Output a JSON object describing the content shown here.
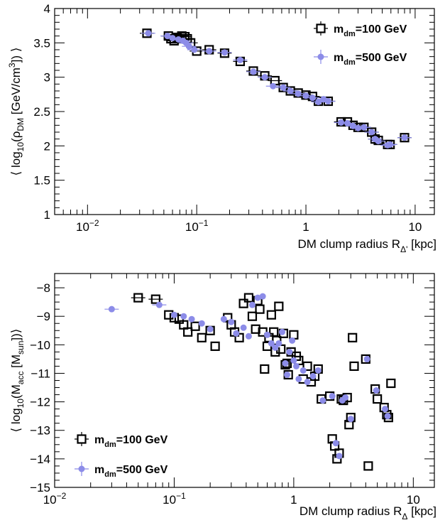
{
  "chart_data": [
    {
      "type": "scatter",
      "xscale": "log",
      "xlim": [
        0.005,
        15
      ],
      "ylim": [
        1,
        4
      ],
      "xlabel": "DM clump radius R",
      "xlabel_sub": "Δ'",
      "xlabel_unit": "[kpc]",
      "ylabel_parts": [
        "⟨ log",
        "10",
        "(ρ",
        "DM",
        " [GeV/cm",
        "3",
        "]) ⟩"
      ],
      "xtick_labels": [
        {
          "value": 0.01,
          "base": "10",
          "exp": "−2"
        },
        {
          "value": 0.1,
          "base": "10",
          "exp": "−1"
        },
        {
          "value": 1,
          "base": "1",
          "exp": ""
        },
        {
          "value": 10,
          "base": "10",
          "exp": ""
        }
      ],
      "ytick_labels": [
        {
          "value": 1,
          "label": "1"
        },
        {
          "value": 1.5,
          "label": "1.5"
        },
        {
          "value": 2,
          "label": "2"
        },
        {
          "value": 2.5,
          "label": "2.5"
        },
        {
          "value": 3,
          "label": "3"
        },
        {
          "value": 3.5,
          "label": "3.5"
        },
        {
          "value": 4,
          "label": "4"
        }
      ],
      "legend": {
        "placement": "top-right",
        "entries": [
          {
            "label_main": "m",
            "label_sub": "dm",
            "label_rest": "=100 GeV",
            "marker": "open-square"
          },
          {
            "label_main": "m",
            "label_sub": "dm",
            "label_rest": "=500 GeV",
            "marker": "filled-circle"
          }
        ]
      },
      "series": [
        {
          "name": "m_dm=100 GeV",
          "marker": "open-square",
          "color": "#000000",
          "points": [
            [
              0.035,
              3.64
            ],
            [
              0.055,
              3.6
            ],
            [
              0.058,
              3.56
            ],
            [
              0.062,
              3.53
            ],
            [
              0.066,
              3.58
            ],
            [
              0.07,
              3.56
            ],
            [
              0.073,
              3.6
            ],
            [
              0.078,
              3.59
            ],
            [
              0.082,
              3.56
            ],
            [
              0.088,
              3.5
            ],
            [
              0.1,
              3.38
            ],
            [
              0.13,
              3.4
            ],
            [
              0.18,
              3.35
            ],
            [
              0.25,
              3.23
            ],
            [
              0.33,
              3.09
            ],
            [
              0.42,
              3.02
            ],
            [
              0.52,
              2.95
            ],
            [
              0.62,
              2.85
            ],
            [
              0.72,
              2.8
            ],
            [
              0.85,
              2.77
            ],
            [
              1.0,
              2.74
            ],
            [
              1.15,
              2.72
            ],
            [
              1.3,
              2.65
            ],
            [
              1.6,
              2.65
            ],
            [
              2.1,
              2.35
            ],
            [
              2.4,
              2.35
            ],
            [
              2.7,
              2.3
            ],
            [
              3.0,
              2.27
            ],
            [
              3.4,
              2.27
            ],
            [
              4.0,
              2.2
            ],
            [
              4.3,
              2.1
            ],
            [
              4.6,
              2.08
            ],
            [
              5.6,
              2.02
            ],
            [
              5.9,
              2.02
            ],
            [
              8.0,
              2.12
            ]
          ]
        },
        {
          "name": "m_dm=500 GeV",
          "marker": "filled-circle",
          "color": "#8c8ce8",
          "points": [
            [
              0.036,
              3.64
            ],
            [
              0.054,
              3.6
            ],
            [
              0.06,
              3.57
            ],
            [
              0.068,
              3.55
            ],
            [
              0.075,
              3.53
            ],
            [
              0.08,
              3.5
            ],
            [
              0.085,
              3.45
            ],
            [
              0.095,
              3.4
            ],
            [
              0.13,
              3.38
            ],
            [
              0.18,
              3.36
            ],
            [
              0.25,
              3.25
            ],
            [
              0.33,
              3.08
            ],
            [
              0.42,
              3.0
            ],
            [
              0.5,
              2.87
            ],
            [
              0.62,
              2.85
            ],
            [
              0.72,
              2.8
            ],
            [
              0.85,
              2.76
            ],
            [
              1.0,
              2.73
            ],
            [
              1.15,
              2.7
            ],
            [
              1.3,
              2.64
            ],
            [
              1.45,
              2.68
            ],
            [
              1.6,
              2.65
            ],
            [
              2.1,
              2.34
            ],
            [
              2.4,
              2.33
            ],
            [
              2.7,
              2.29
            ],
            [
              3.0,
              2.26
            ],
            [
              3.4,
              2.27
            ],
            [
              4.0,
              2.2
            ],
            [
              4.3,
              2.1
            ],
            [
              4.6,
              2.07
            ],
            [
              5.6,
              2.01
            ],
            [
              5.9,
              2.02
            ],
            [
              8.0,
              2.12
            ]
          ]
        }
      ]
    },
    {
      "type": "scatter",
      "xscale": "log",
      "xlim": [
        0.01,
        15
      ],
      "ylim": [
        -15,
        -7.5
      ],
      "xlabel": "DM clump radius R",
      "xlabel_sub": "Δ",
      "xlabel_unit": "[kpc]",
      "ylabel_parts": [
        "⟨ log",
        "10",
        "(M",
        "acc",
        " [M",
        "sun",
        "])⟩"
      ],
      "xtick_labels": [
        {
          "value": 0.01,
          "base": "10",
          "exp": "−2"
        },
        {
          "value": 0.1,
          "base": "10",
          "exp": "−1"
        },
        {
          "value": 1,
          "base": "1",
          "exp": ""
        },
        {
          "value": 10,
          "base": "10",
          "exp": ""
        }
      ],
      "ytick_labels": [
        {
          "value": -8,
          "label": "−8"
        },
        {
          "value": -9,
          "label": "−9"
        },
        {
          "value": -10,
          "label": "−10"
        },
        {
          "value": -11,
          "label": "−11"
        },
        {
          "value": -12,
          "label": "−12"
        },
        {
          "value": -13,
          "label": "−13"
        },
        {
          "value": -14,
          "label": "−14"
        },
        {
          "value": -15,
          "label": "−15"
        }
      ],
      "legend": {
        "placement": "bottom-left",
        "entries": [
          {
            "label_main": "m",
            "label_sub": "dm",
            "label_rest": "=100 GeV",
            "marker": "open-square"
          },
          {
            "label_main": "m",
            "label_sub": "dm",
            "label_rest": "=500 GeV",
            "marker": "filled-circle"
          }
        ]
      },
      "series": [
        {
          "name": "m_dm=100 GeV",
          "marker": "open-square",
          "color": "#000000",
          "points": [
            [
              0.05,
              -8.35
            ],
            [
              0.07,
              -8.4
            ],
            [
              0.09,
              -8.95
            ],
            [
              0.1,
              -9.05
            ],
            [
              0.11,
              -9.1
            ],
            [
              0.12,
              -9.3
            ],
            [
              0.13,
              -9.55
            ],
            [
              0.15,
              -9.35
            ],
            [
              0.17,
              -9.75
            ],
            [
              0.2,
              -9.5
            ],
            [
              0.22,
              -10.05
            ],
            [
              0.28,
              -9.05
            ],
            [
              0.3,
              -9.3
            ],
            [
              0.32,
              -9.55
            ],
            [
              0.35,
              -9.75
            ],
            [
              0.38,
              -8.55
            ],
            [
              0.42,
              -8.35
            ],
            [
              0.45,
              -9.0
            ],
            [
              0.48,
              -9.45
            ],
            [
              0.5,
              -8.45
            ],
            [
              0.52,
              -8.75
            ],
            [
              0.55,
              -9.55
            ],
            [
              0.57,
              -10.85
            ],
            [
              0.6,
              -10.05
            ],
            [
              0.62,
              -9.75
            ],
            [
              0.65,
              -8.95
            ],
            [
              0.68,
              -9.55
            ],
            [
              0.7,
              -10.25
            ],
            [
              0.72,
              -9.85
            ],
            [
              0.75,
              -8.65
            ],
            [
              0.78,
              -10.15
            ],
            [
              0.82,
              -9.6
            ],
            [
              0.85,
              -10.7
            ],
            [
              0.88,
              -10.65
            ],
            [
              0.9,
              -11.05
            ],
            [
              0.95,
              -10.25
            ],
            [
              1.0,
              -9.65
            ],
            [
              1.05,
              -10.4
            ],
            [
              1.1,
              -10.55
            ],
            [
              1.2,
              -11.2
            ],
            [
              1.3,
              -10.75
            ],
            [
              1.4,
              -11.3
            ],
            [
              1.5,
              -11.1
            ],
            [
              1.6,
              -10.85
            ],
            [
              1.7,
              -11.9
            ],
            [
              2.0,
              -11.8
            ],
            [
              2.1,
              -13.3
            ],
            [
              2.2,
              -13.55
            ],
            [
              2.3,
              -14.0
            ],
            [
              2.4,
              -13.8
            ],
            [
              2.5,
              -11.9
            ],
            [
              2.6,
              -11.95
            ],
            [
              2.8,
              -11.85
            ],
            [
              2.9,
              -12.8
            ],
            [
              3.0,
              -12.55
            ],
            [
              3.1,
              -9.75
            ],
            [
              3.2,
              -10.75
            ],
            [
              4.0,
              -10.5
            ],
            [
              4.2,
              -14.25
            ],
            [
              4.8,
              -11.55
            ],
            [
              5.0,
              -11.9
            ],
            [
              5.7,
              -12.2
            ],
            [
              6.0,
              -12.45
            ],
            [
              6.2,
              -12.55
            ],
            [
              6.5,
              -11.35
            ]
          ]
        },
        {
          "name": "m_dm=500 GeV",
          "marker": "filled-circle",
          "color": "#8c8ce8",
          "points": [
            [
              0.03,
              -8.75
            ],
            [
              0.075,
              -8.6
            ],
            [
              0.1,
              -8.95
            ],
            [
              0.12,
              -9.0
            ],
            [
              0.14,
              -9.1
            ],
            [
              0.17,
              -9.25
            ],
            [
              0.2,
              -9.45
            ],
            [
              0.26,
              -9.1
            ],
            [
              0.3,
              -9.2
            ],
            [
              0.33,
              -9.6
            ],
            [
              0.38,
              -9.4
            ],
            [
              0.42,
              -9.7
            ],
            [
              0.45,
              -8.6
            ],
            [
              0.5,
              -8.35
            ],
            [
              0.55,
              -8.3
            ],
            [
              0.6,
              -9.65
            ],
            [
              0.65,
              -9.95
            ],
            [
              0.7,
              -10.1
            ],
            [
              0.75,
              -9.95
            ],
            [
              0.8,
              -9.55
            ],
            [
              0.85,
              -10.65
            ],
            [
              0.88,
              -11.05
            ],
            [
              0.92,
              -10.25
            ],
            [
              0.97,
              -9.85
            ],
            [
              1.0,
              -10.55
            ],
            [
              1.05,
              -10.75
            ],
            [
              1.1,
              -11.2
            ],
            [
              1.2,
              -10.9
            ],
            [
              1.3,
              -11.3
            ],
            [
              1.45,
              -11.1
            ],
            [
              1.6,
              -10.9
            ],
            [
              1.75,
              -11.95
            ],
            [
              2.1,
              -11.8
            ],
            [
              2.25,
              -13.45
            ],
            [
              2.4,
              -13.9
            ],
            [
              2.55,
              -11.95
            ],
            [
              2.7,
              -11.85
            ],
            [
              3.0,
              -12.6
            ],
            [
              4.1,
              -10.5
            ],
            [
              4.9,
              -11.6
            ],
            [
              5.8,
              -12.25
            ],
            [
              6.1,
              -12.5
            ]
          ]
        }
      ]
    }
  ]
}
